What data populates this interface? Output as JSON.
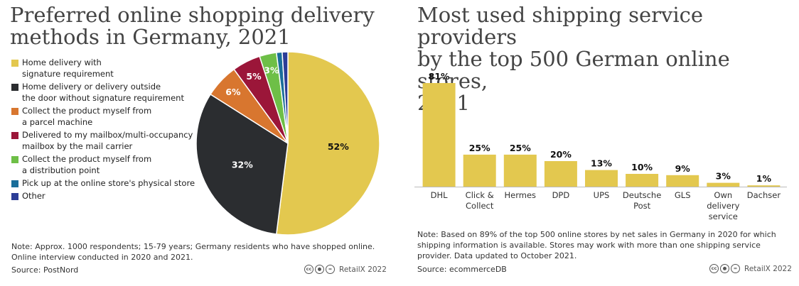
{
  "left": {
    "title_lines": [
      "Preferred online shopping delivery",
      "methods in Germany, 2021"
    ],
    "legend": [
      {
        "lines": [
          "Home delivery with",
          "signature requirement"
        ],
        "color": "#e3c84f"
      },
      {
        "lines": [
          "Home delivery or delivery outside",
          "the door without signature requirement"
        ],
        "color": "#2b2d30"
      },
      {
        "lines": [
          "Collect the product myself from",
          "a parcel machine"
        ],
        "color": "#d8762f"
      },
      {
        "lines": [
          "Delivered to my mailbox/multi-occupancy",
          "mailbox by the mail carrier"
        ],
        "color": "#9b1639"
      },
      {
        "lines": [
          "Collect the product myself from",
          "a distribution point"
        ],
        "color": "#6ebf47"
      },
      {
        "lines": [
          "Pick up at the online store's physical store"
        ],
        "color": "#1a6e9a"
      },
      {
        "lines": [
          "Other"
        ],
        "color": "#2c3d97"
      }
    ],
    "note_lines": [
      "Note: Approx. 1000 respondents; 15-79 years; Germany residents who have shopped online.",
      "Online interview conducted in 2020 and 2021."
    ],
    "source": "Source: PostNord",
    "credit": "RetailX 2022"
  },
  "right": {
    "title_lines": [
      "Most used shipping service providers",
      "by the top 500 German online stores,",
      "2021"
    ],
    "note_lines": [
      "Note: Based on 89% of the top 500 online stores by net sales in Germany in 2020 for which",
      "shipping information is available. Stores may work with more than one shipping service",
      "provider. Data updated to October 2021."
    ],
    "source": "Source: ecommerceDB",
    "credit": "RetailX 2022"
  },
  "chart_data": [
    {
      "type": "pie",
      "title": "Preferred online shopping delivery methods in Germany, 2021",
      "categories": [
        "Home delivery with signature requirement",
        "Home delivery or delivery outside the door without signature requirement",
        "Collect the product myself from a parcel machine",
        "Delivered to my mailbox/multi-occupancy mailbox by the mail carrier",
        "Collect the product myself from a distribution point",
        "Pick up at the online store's physical store",
        "Other"
      ],
      "values": [
        52,
        32,
        6,
        5,
        3,
        1,
        1
      ],
      "labels": [
        "52%",
        "32%",
        "6%",
        "5%",
        "3%",
        "",
        ""
      ],
      "colors": [
        "#e3c84f",
        "#2b2d30",
        "#d8762f",
        "#9b1639",
        "#6ebf47",
        "#1a6e9a",
        "#2c3d97"
      ],
      "label_colors": [
        "#111111",
        "#ffffff",
        "#ffffff",
        "#ffffff",
        "#ffffff",
        "#ffffff",
        "#ffffff"
      ],
      "legend_position": "left"
    },
    {
      "type": "bar",
      "title": "Most used shipping service providers by the top 500 German online stores, 2021",
      "categories": [
        [
          "DHL"
        ],
        [
          "Click &",
          "Collect"
        ],
        [
          "Hermes"
        ],
        [
          "DPD"
        ],
        [
          "UPS"
        ],
        [
          "Deutsche",
          "Post"
        ],
        [
          "GLS"
        ],
        [
          "Own",
          "delivery",
          "service"
        ],
        [
          "Dachser"
        ]
      ],
      "values": [
        81,
        25,
        25,
        20,
        13,
        10,
        9,
        3,
        1
      ],
      "labels": [
        "81%",
        "25%",
        "25%",
        "20%",
        "13%",
        "10%",
        "9%",
        "3%",
        "1%"
      ],
      "ylim": [
        0,
        81
      ],
      "color": "#e3c84f",
      "grid": false
    }
  ]
}
